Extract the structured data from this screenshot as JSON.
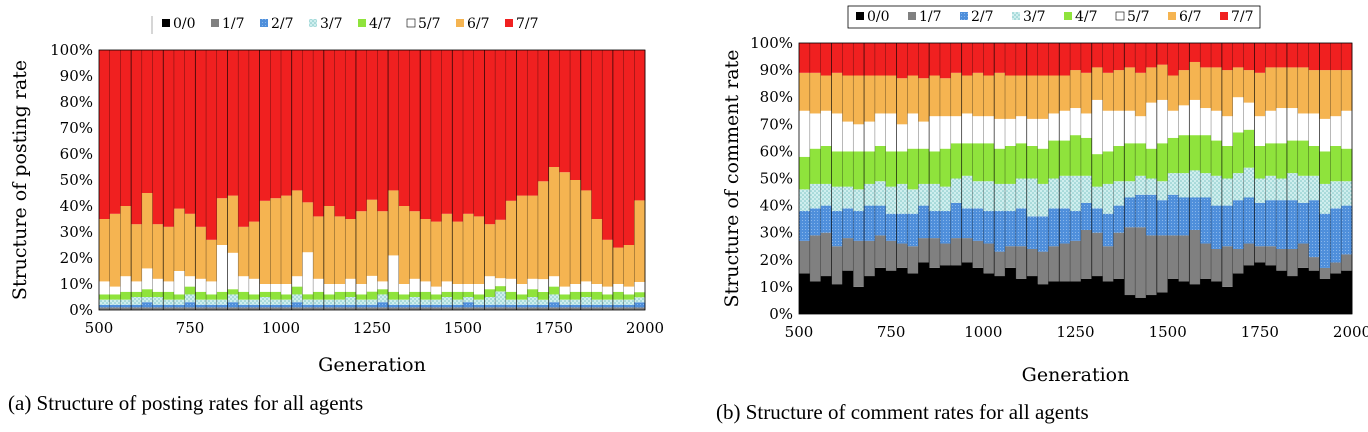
{
  "chart_data": [
    {
      "type": "bar",
      "stacked": true,
      "percent": true,
      "x": [
        500,
        530,
        560,
        590,
        620,
        650,
        680,
        710,
        740,
        770,
        800,
        830,
        860,
        890,
        920,
        950,
        980,
        1010,
        1040,
        1070,
        1100,
        1130,
        1160,
        1190,
        1220,
        1250,
        1280,
        1310,
        1340,
        1370,
        1400,
        1430,
        1460,
        1490,
        1520,
        1550,
        1580,
        1610,
        1640,
        1670,
        1700,
        1730,
        1760,
        1790,
        1820,
        1850,
        1880,
        1910,
        1940,
        1970,
        2000
      ],
      "xlim": [
        500,
        2000
      ],
      "xticks": [
        "500",
        "750",
        "1000",
        "1250",
        "1500",
        "1750",
        "2000"
      ],
      "yticks": [
        "0%",
        "10%",
        "20%",
        "30%",
        "40%",
        "50%",
        "60%",
        "70%",
        "80%",
        "90%",
        "100%"
      ],
      "ylim": [
        0,
        100
      ],
      "xlabel": "Generation",
      "ylabel": "Structure of posting rate",
      "legend_position": "top",
      "series": [
        {
          "name": "0/0",
          "values": [
            0,
            0,
            0,
            0,
            0,
            0,
            0,
            0,
            0,
            0,
            0,
            0,
            0,
            0,
            0,
            0,
            0,
            0,
            0,
            0,
            0,
            0,
            0,
            0,
            0,
            0,
            0,
            0,
            0,
            0,
            0,
            0,
            0,
            0,
            0,
            0,
            0,
            0,
            0,
            0,
            0,
            0,
            0,
            0,
            0,
            0,
            0,
            0,
            0,
            0,
            0
          ]
        },
        {
          "name": "1/7",
          "values": [
            1,
            1,
            1,
            1,
            1,
            1,
            1,
            1,
            1,
            1,
            1,
            1,
            1,
            1,
            1,
            1,
            1,
            1,
            1,
            1,
            1,
            1,
            1,
            1,
            1,
            1,
            1,
            1,
            1,
            1,
            1,
            1,
            1,
            1,
            1,
            1,
            1,
            1,
            1,
            1,
            1,
            1,
            1,
            1,
            1,
            1,
            1,
            1,
            1,
            1,
            1
          ]
        },
        {
          "name": "2/7",
          "values": [
            1,
            1,
            1,
            1,
            2,
            1,
            1,
            1,
            2,
            1,
            1,
            1,
            2,
            1,
            1,
            1,
            1,
            1,
            2,
            1,
            1,
            1,
            1,
            1,
            1,
            1,
            2,
            1,
            1,
            1,
            1,
            1,
            1,
            1,
            2,
            1,
            1,
            1,
            1,
            1,
            1,
            1,
            2,
            1,
            1,
            1,
            1,
            1,
            1,
            1,
            2
          ]
        },
        {
          "name": "3/7",
          "values": [
            2,
            2,
            2,
            3,
            2,
            3,
            2,
            2,
            3,
            2,
            2,
            2,
            3,
            2,
            2,
            3,
            2,
            2,
            3,
            2,
            2,
            2,
            2,
            3,
            2,
            2,
            3,
            2,
            2,
            3,
            2,
            2,
            3,
            2,
            2,
            2,
            3,
            5,
            2,
            2,
            3,
            2,
            3,
            2,
            2,
            3,
            2,
            2,
            2,
            2,
            2
          ]
        },
        {
          "name": "4/7",
          "values": [
            2,
            2,
            3,
            2,
            3,
            2,
            3,
            2,
            3,
            3,
            2,
            3,
            2,
            3,
            2,
            2,
            3,
            2,
            3,
            2,
            3,
            2,
            3,
            2,
            2,
            3,
            2,
            3,
            2,
            2,
            3,
            2,
            2,
            3,
            2,
            2,
            3,
            2,
            3,
            2,
            3,
            3,
            3,
            2,
            3,
            2,
            3,
            2,
            3,
            2,
            2
          ]
        },
        {
          "name": "5/7",
          "values": [
            5,
            3,
            6,
            4,
            8,
            5,
            4,
            9,
            4,
            5,
            5,
            18,
            14,
            6,
            6,
            3,
            3,
            4,
            4,
            16,
            5,
            4,
            3,
            5,
            4,
            6,
            3,
            14,
            4,
            5,
            4,
            3,
            4,
            3,
            3,
            4,
            5,
            3,
            5,
            4,
            4,
            5,
            4,
            3,
            3,
            4,
            3,
            3,
            3,
            3,
            4
          ]
        },
        {
          "name": "6/7",
          "values": [
            24,
            28,
            27,
            22,
            29,
            21,
            21,
            24,
            24,
            20,
            16,
            18,
            22,
            19,
            22,
            32,
            33,
            34,
            33,
            19,
            24,
            30,
            26,
            23,
            28,
            29,
            27,
            25,
            30,
            26,
            24,
            25,
            26,
            24,
            27,
            26,
            20,
            22,
            30,
            34,
            32,
            38,
            42,
            44,
            40,
            35,
            25,
            18,
            14,
            16,
            32
          ]
        },
        {
          "name": "7/7",
          "values": [
            65,
            63,
            60,
            67,
            55,
            67,
            68,
            61,
            63,
            68,
            73,
            57,
            56,
            68,
            66,
            58,
            57,
            56,
            54,
            58,
            64,
            60,
            64,
            65,
            62,
            57,
            62,
            54,
            60,
            62,
            65,
            66,
            63,
            66,
            63,
            64,
            67,
            64,
            58,
            56,
            56,
            51,
            45,
            47,
            50,
            54,
            65,
            73,
            76,
            75,
            59
          ]
        }
      ]
    },
    {
      "type": "bar",
      "stacked": true,
      "percent": true,
      "x": [
        500,
        530,
        560,
        590,
        620,
        650,
        680,
        710,
        740,
        770,
        800,
        830,
        860,
        890,
        920,
        950,
        980,
        1010,
        1040,
        1070,
        1100,
        1130,
        1160,
        1190,
        1220,
        1250,
        1280,
        1310,
        1340,
        1370,
        1400,
        1430,
        1460,
        1490,
        1520,
        1550,
        1580,
        1610,
        1640,
        1670,
        1700,
        1730,
        1760,
        1790,
        1820,
        1850,
        1880,
        1910,
        1940,
        1970,
        2000
      ],
      "xlim": [
        500,
        2000
      ],
      "xticks": [
        "500",
        "750",
        "1000",
        "1250",
        "1500",
        "1750",
        "2000"
      ],
      "yticks": [
        "0%",
        "10%",
        "20%",
        "30%",
        "40%",
        "50%",
        "60%",
        "70%",
        "80%",
        "90%",
        "100%"
      ],
      "ylim": [
        0,
        100
      ],
      "xlabel": "Generation",
      "ylabel": "Structure of comment rate",
      "legend_position": "top",
      "series": [
        {
          "name": "0/0",
          "values": [
            15,
            12,
            14,
            11,
            16,
            10,
            14,
            17,
            16,
            17,
            15,
            19,
            17,
            18,
            18,
            19,
            17,
            15,
            14,
            17,
            13,
            14,
            11,
            12,
            12,
            12,
            13,
            14,
            12,
            13,
            7,
            6,
            7,
            8,
            13,
            12,
            11,
            13,
            12,
            10,
            15,
            18,
            19,
            18,
            16,
            14,
            17,
            16,
            13,
            15,
            16
          ]
        },
        {
          "name": "1/7",
          "values": [
            12,
            17,
            16,
            14,
            12,
            17,
            13,
            12,
            11,
            9,
            10,
            9,
            11,
            8,
            10,
            9,
            10,
            11,
            9,
            8,
            12,
            10,
            12,
            13,
            14,
            15,
            18,
            16,
            13,
            17,
            25,
            26,
            22,
            21,
            16,
            17,
            20,
            13,
            12,
            15,
            9,
            8,
            6,
            7,
            8,
            10,
            9,
            5,
            4,
            4,
            6
          ]
        },
        {
          "name": "2/7",
          "values": [
            11,
            10,
            10,
            13,
            11,
            11,
            13,
            11,
            10,
            11,
            12,
            12,
            10,
            12,
            13,
            11,
            12,
            12,
            15,
            13,
            14,
            12,
            13,
            14,
            13,
            11,
            10,
            9,
            12,
            10,
            11,
            12,
            15,
            13,
            15,
            14,
            12,
            17,
            16,
            15,
            18,
            17,
            16,
            17,
            18,
            18,
            15,
            21,
            20,
            20,
            18
          ]
        },
        {
          "name": "3/7",
          "values": [
            8,
            9,
            8,
            9,
            8,
            8,
            8,
            9,
            10,
            11,
            9,
            8,
            10,
            9,
            9,
            12,
            10,
            11,
            10,
            10,
            11,
            14,
            12,
            11,
            12,
            13,
            10,
            8,
            11,
            9,
            6,
            7,
            6,
            7,
            8,
            9,
            10,
            9,
            11,
            10,
            10,
            11,
            9,
            9,
            8,
            10,
            10,
            9,
            11,
            10,
            9
          ]
        },
        {
          "name": "4/7",
          "values": [
            12,
            13,
            14,
            13,
            13,
            14,
            12,
            13,
            13,
            12,
            15,
            13,
            12,
            14,
            13,
            12,
            14,
            14,
            13,
            14,
            13,
            12,
            13,
            14,
            13,
            15,
            14,
            12,
            12,
            13,
            14,
            12,
            11,
            14,
            13,
            14,
            13,
            14,
            13,
            12,
            15,
            14,
            12,
            12,
            13,
            12,
            13,
            11,
            12,
            13,
            12
          ]
        },
        {
          "name": "5/7",
          "values": [
            17,
            13,
            13,
            14,
            11,
            10,
            11,
            12,
            14,
            10,
            13,
            10,
            13,
            12,
            10,
            11,
            10,
            10,
            11,
            10,
            10,
            10,
            11,
            10,
            11,
            10,
            9,
            20,
            15,
            13,
            12,
            10,
            17,
            16,
            10,
            11,
            13,
            10,
            11,
            11,
            13,
            10,
            11,
            12,
            13,
            12,
            10,
            12,
            12,
            11,
            14
          ]
        },
        {
          "name": "6/7",
          "values": [
            14,
            15,
            13,
            15,
            17,
            18,
            17,
            14,
            14,
            17,
            14,
            16,
            15,
            14,
            16,
            14,
            16,
            15,
            17,
            16,
            15,
            16,
            16,
            14,
            13,
            14,
            15,
            12,
            14,
            15,
            16,
            16,
            13,
            13,
            13,
            13,
            14,
            15,
            16,
            17,
            11,
            12,
            16,
            16,
            15,
            15,
            17,
            16,
            18,
            17,
            15
          ]
        },
        {
          "name": "7/7",
          "values": [
            11,
            11,
            12,
            11,
            12,
            12,
            12,
            12,
            12,
            13,
            12,
            13,
            12,
            13,
            11,
            12,
            11,
            12,
            11,
            12,
            12,
            12,
            12,
            12,
            12,
            10,
            11,
            9,
            11,
            10,
            9,
            11,
            9,
            8,
            12,
            10,
            7,
            9,
            9,
            10,
            9,
            10,
            11,
            9,
            9,
            9,
            9,
            10,
            10,
            10,
            10
          ]
        }
      ]
    }
  ],
  "legend": {
    "colors": [
      "#000000",
      "#808080",
      "#4f8fdb",
      "#b9e2e2",
      "#8fe33c",
      "#ffffff",
      "#f5b451",
      "#f02020"
    ],
    "hatched": [
      false,
      false,
      false,
      true,
      false,
      false,
      false,
      false
    ]
  },
  "captions": {
    "a": "(a) Structure of posting rates for all agents",
    "b": "(b) Structure of comment rates for all agents"
  }
}
